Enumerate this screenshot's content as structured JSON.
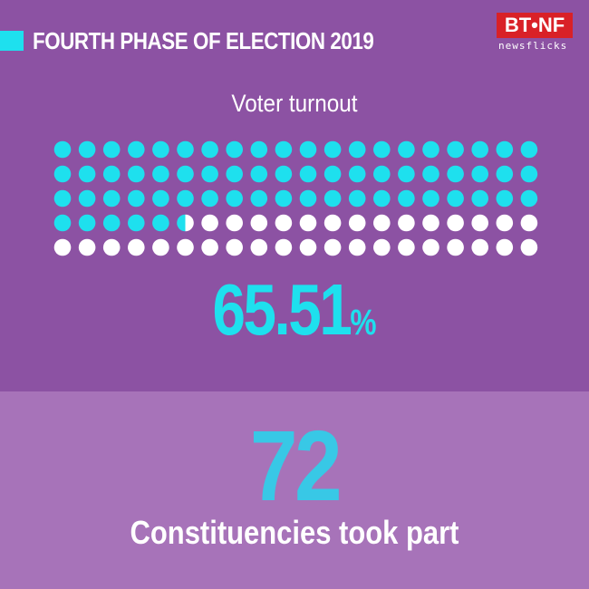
{
  "header": {
    "title": "FOURTH PHASE OF ELECTION 2019",
    "accent_color": "#1ee0ee"
  },
  "logo": {
    "main": "BT•NF",
    "sub": "newsflicks",
    "color": "#d92127"
  },
  "turnout": {
    "label": "Voter turnout",
    "value": "65.51",
    "unit": "%",
    "fraction": 0.6551,
    "total_dots": 100,
    "filled_color": "#1ee0ee",
    "empty_color": "#ffffff"
  },
  "constituencies": {
    "count": "72",
    "caption": "Constituencies took part"
  },
  "colors": {
    "top_background": "#8c52a3",
    "bottom_background": "#a773b9"
  }
}
